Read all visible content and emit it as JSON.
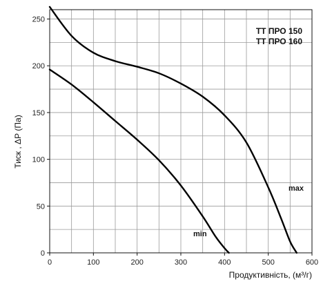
{
  "chart_data": {
    "type": "line",
    "models": [
      "ТТ ПРО 150",
      "ТТ ПРО 160"
    ],
    "xlabel": "Продуктивність, (м³/г)",
    "ylabel": "Тиск , ΔР (Па)",
    "xlim": [
      0,
      600
    ],
    "ylim": [
      0,
      260
    ],
    "x_ticks": [
      0,
      100,
      200,
      300,
      400,
      500,
      600
    ],
    "y_ticks": [
      0,
      50,
      100,
      150,
      200,
      250
    ],
    "grid": true,
    "series": [
      {
        "name": "max",
        "x": [
          0,
          50,
          100,
          150,
          200,
          250,
          300,
          350,
          400,
          450,
          500,
          530,
          550,
          565
        ],
        "y": [
          263,
          232,
          214,
          205,
          199,
          192,
          181,
          167,
          147,
          118,
          70,
          36,
          12,
          0
        ]
      },
      {
        "name": "min",
        "x": [
          0,
          50,
          100,
          150,
          200,
          250,
          300,
          350,
          380,
          400,
          410
        ],
        "y": [
          196,
          180,
          161,
          141,
          121,
          99,
          72,
          39,
          17,
          5,
          0
        ]
      }
    ]
  }
}
